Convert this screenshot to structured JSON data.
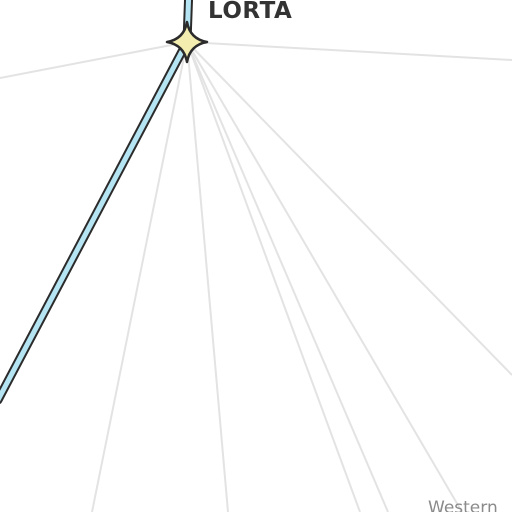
{
  "map": {
    "waypoint": {
      "name": "LORTA",
      "icon": "waypoint-star-icon",
      "fill_color": "#f3eeb0",
      "stroke_color": "#2b2b2b"
    },
    "region_label": "Western",
    "route": {
      "fill_color": "#b5e4f3",
      "stroke_color": "#2b2b2b"
    },
    "radial_line_color": "#e3e3e3"
  }
}
